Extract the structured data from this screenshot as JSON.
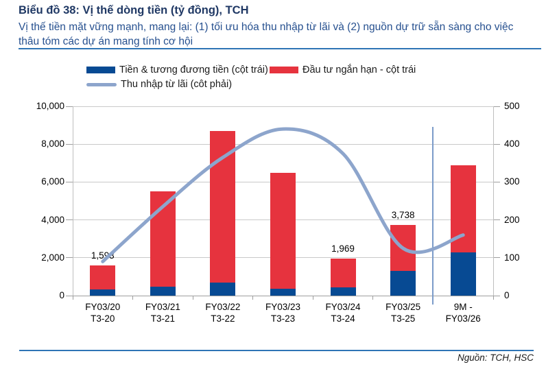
{
  "header": {
    "title": "Biểu đồ 38: Vị thế dòng tiền (tỷ đồng), TCH",
    "subtitle": "Vị thế tiền mặt vững mạnh, mang lại: (1) tối ưu hóa thu nhập từ lãi và (2) nguồn dự trữ sẵn sàng cho việc thâu tóm các dự án mang tính cơ hội"
  },
  "footer": {
    "source": "Nguồn: TCH, HSC"
  },
  "colors": {
    "title": "#1F3864",
    "subtitle": "#26508F",
    "rule": "#2E74B5",
    "cash_bar": "#074A93",
    "investment_bar": "#E6333E",
    "interest_line": "#8DA5CC",
    "separator_line": "#7B9BC9",
    "gridline": "#C9C9C9"
  },
  "chart_data": {
    "type": "bar",
    "subtype": "stacked-bars-with-line",
    "title": "Vị thế dòng tiền (tỷ đồng), TCH",
    "categories": [
      {
        "line1": "FY03/20",
        "line2": "T3-20"
      },
      {
        "line1": "FY03/21",
        "line2": "T3-21"
      },
      {
        "line1": "FY03/22",
        "line2": "T3-22"
      },
      {
        "line1": "FY03/23",
        "line2": "T3-23"
      },
      {
        "line1": "FY03/24",
        "line2": "T3-24"
      },
      {
        "line1": "FY03/25",
        "line2": "T3-25"
      },
      {
        "line1": "9M -",
        "line2": "FY03/26"
      }
    ],
    "series": [
      {
        "name": "Tiền & tương đương tiền (cột trái)",
        "type": "bar",
        "stack": "left",
        "color": "#074A93",
        "values": [
          320,
          460,
          680,
          370,
          430,
          1290,
          2280
        ]
      },
      {
        "name": "Đầu tư ngắn hạn - cột trái",
        "type": "bar",
        "stack": "left",
        "color": "#E6333E",
        "values": [
          1273,
          5060,
          8020,
          6130,
          1539,
          2448,
          4600
        ]
      },
      {
        "name": "Thu nhập từ lãi (côt phải)",
        "type": "line",
        "axis": "right",
        "color": "#8DA5CC",
        "values": [
          90,
          235,
          365,
          440,
          375,
          125,
          160
        ]
      }
    ],
    "bar_totals": [
      1593,
      5520,
      8700,
      6500,
      1969,
      3738,
      6880
    ],
    "bar_total_labels": [
      "1,593",
      "",
      "",
      "",
      "1,969",
      "3,738",
      ""
    ],
    "left_axis": {
      "min": 0,
      "max": 10000,
      "tick_labels": [
        "0",
        "2,000",
        "4,000",
        "6,000",
        "8,000",
        "10,000"
      ]
    },
    "right_axis": {
      "min": 0,
      "max": 500,
      "tick_labels": [
        "0",
        "100",
        "200",
        "300",
        "400",
        "500"
      ]
    },
    "separator_before_category_index": 6,
    "grid": true,
    "legend_position": "top"
  }
}
